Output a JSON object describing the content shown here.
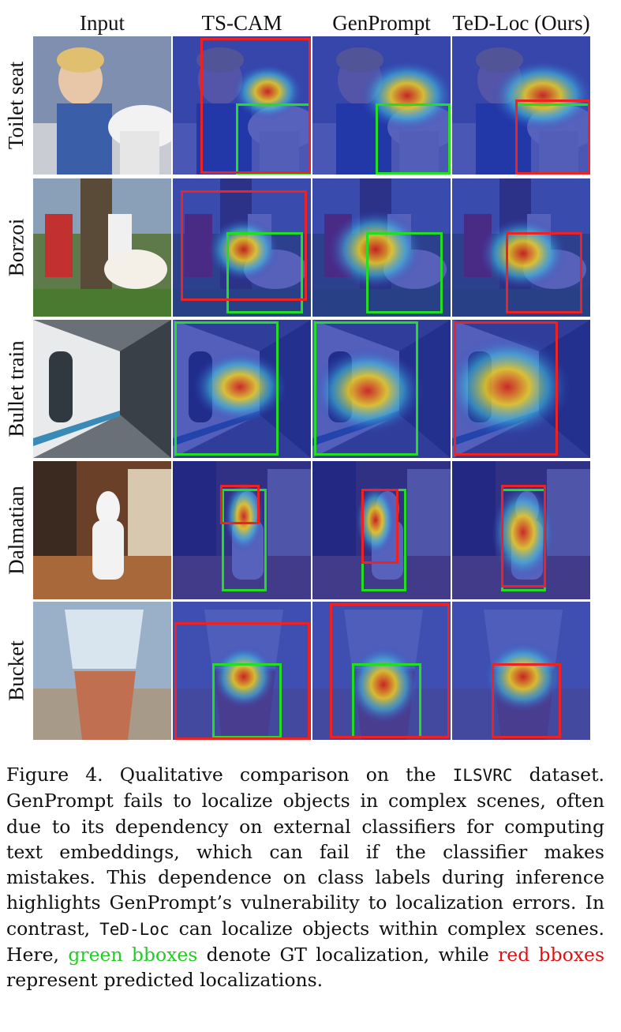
{
  "columns": [
    "Input",
    "TS-CAM",
    "GenPrompt",
    "TeD-Loc (Ours)"
  ],
  "rows": [
    "Toilet seat",
    "Borzoi",
    "Bullet train",
    "Dalmatian",
    "Bucket"
  ],
  "colors": {
    "gt_box": "#22dd22",
    "pred_box": "#ee2222",
    "heat_low": "#1a2aa8",
    "heat_high": "#e02010"
  },
  "caption": {
    "part1": "Figure 4.  Qualitative comparison on the ",
    "dataset": "ILSVRC",
    "part2": " dataset. GenPrompt fails to localize objects in complex scenes, often due to its dependency on external classifiers for computing text embeddings, which can fail if the classifier makes mistakes. This dependence on class labels during inference highlights GenPrompt’s vulnerability to localization errors. In contrast, ",
    "method": "TeD-Loc",
    "part3": " can localize objects within complex scenes.  Here, ",
    "green": "green bboxes",
    "part4": " denote GT localization, while ",
    "red": "red bboxes",
    "part5": " represent predicted localizations."
  }
}
